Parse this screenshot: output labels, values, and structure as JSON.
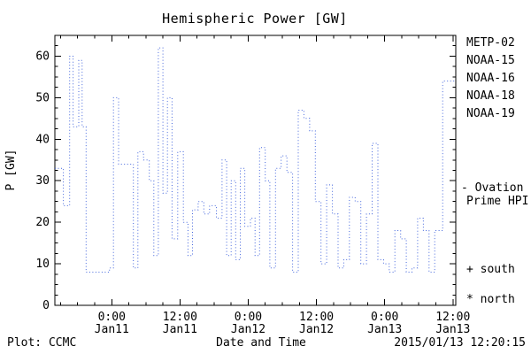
{
  "title": "Hemispheric Power [GW]",
  "axes": {
    "ylabel": "P [GW]",
    "xlabel": "Date and Time",
    "ylim": [
      0,
      65
    ],
    "yticks": [
      0,
      10,
      20,
      30,
      40,
      50,
      60
    ],
    "xlim": [
      0,
      70.5
    ],
    "xticks": [
      {
        "t": 10,
        "time": "0:00",
        "date": "Jan11"
      },
      {
        "t": 22,
        "time": "12:00",
        "date": "Jan11"
      },
      {
        "t": 34,
        "time": "0:00",
        "date": "Jan12"
      },
      {
        "t": 46,
        "time": "12:00",
        "date": "Jan12"
      },
      {
        "t": 58,
        "time": "0:00",
        "date": "Jan13"
      },
      {
        "t": 70,
        "time": "12:00",
        "date": "Jan13"
      }
    ]
  },
  "legend": {
    "satellites": [
      {
        "label": "METP-02",
        "color": "#111111"
      },
      {
        "label": "NOAA-15",
        "color": "#2244cc"
      },
      {
        "label": "NOAA-16",
        "color": "#00b8cc"
      },
      {
        "label": "NOAA-18",
        "color": "#88d8a0"
      },
      {
        "label": "NOAA-19",
        "color": "#ff9933"
      }
    ],
    "series_line1": "- Ovation",
    "series_line2": "Prime HPI",
    "series_color": "#2244cc",
    "south_marker": "+ south",
    "north_marker": "* north"
  },
  "footer": {
    "credit": "Plot: CCMC",
    "timestamp": "2015/01/13 12:20:15"
  },
  "chart_data": {
    "type": "line",
    "style": "step, dotted",
    "line_color": "#4466dd",
    "title": "Hemispheric Power [GW]",
    "xlabel": "Date and Time",
    "ylabel": "P [GW]",
    "x_unit": "hours since 2015-01-10 ~14:00 UT (ticks mark 0:00/12:00 of Jan 11-13)",
    "ylim": [
      0,
      65
    ],
    "points": [
      [
        0.0,
        33
      ],
      [
        1.5,
        24
      ],
      [
        2.6,
        60
      ],
      [
        3.2,
        43
      ],
      [
        4.2,
        59
      ],
      [
        4.8,
        43
      ],
      [
        5.5,
        8
      ],
      [
        9.6,
        9
      ],
      [
        10.3,
        50
      ],
      [
        11.2,
        34
      ],
      [
        12.5,
        34
      ],
      [
        13.8,
        9
      ],
      [
        14.6,
        37
      ],
      [
        15.6,
        35
      ],
      [
        16.6,
        30
      ],
      [
        17.4,
        12
      ],
      [
        18.2,
        62
      ],
      [
        19.0,
        27
      ],
      [
        19.8,
        50
      ],
      [
        20.6,
        16
      ],
      [
        21.6,
        37
      ],
      [
        22.6,
        20
      ],
      [
        23.4,
        12
      ],
      [
        24.2,
        23
      ],
      [
        25.2,
        25
      ],
      [
        26.2,
        22
      ],
      [
        27.2,
        24
      ],
      [
        28.4,
        21
      ],
      [
        29.4,
        35
      ],
      [
        30.2,
        12
      ],
      [
        31.0,
        30
      ],
      [
        31.8,
        11
      ],
      [
        32.6,
        33
      ],
      [
        33.4,
        19
      ],
      [
        34.4,
        21
      ],
      [
        35.2,
        12
      ],
      [
        36.0,
        38
      ],
      [
        37.0,
        30
      ],
      [
        37.8,
        9
      ],
      [
        38.8,
        33
      ],
      [
        39.8,
        36
      ],
      [
        40.8,
        32
      ],
      [
        41.8,
        8
      ],
      [
        42.8,
        47
      ],
      [
        43.8,
        45
      ],
      [
        44.8,
        42
      ],
      [
        45.8,
        25
      ],
      [
        46.8,
        10
      ],
      [
        47.8,
        29
      ],
      [
        48.8,
        22
      ],
      [
        49.8,
        9
      ],
      [
        50.8,
        11
      ],
      [
        51.8,
        26
      ],
      [
        52.8,
        25
      ],
      [
        53.8,
        10
      ],
      [
        54.8,
        22
      ],
      [
        55.8,
        39
      ],
      [
        56.8,
        11
      ],
      [
        57.8,
        10
      ],
      [
        58.8,
        8
      ],
      [
        59.8,
        18
      ],
      [
        60.8,
        16
      ],
      [
        61.8,
        8
      ],
      [
        62.8,
        9
      ],
      [
        63.8,
        21
      ],
      [
        64.8,
        18
      ],
      [
        65.8,
        8
      ],
      [
        66.8,
        18
      ],
      [
        68.2,
        54
      ]
    ]
  }
}
